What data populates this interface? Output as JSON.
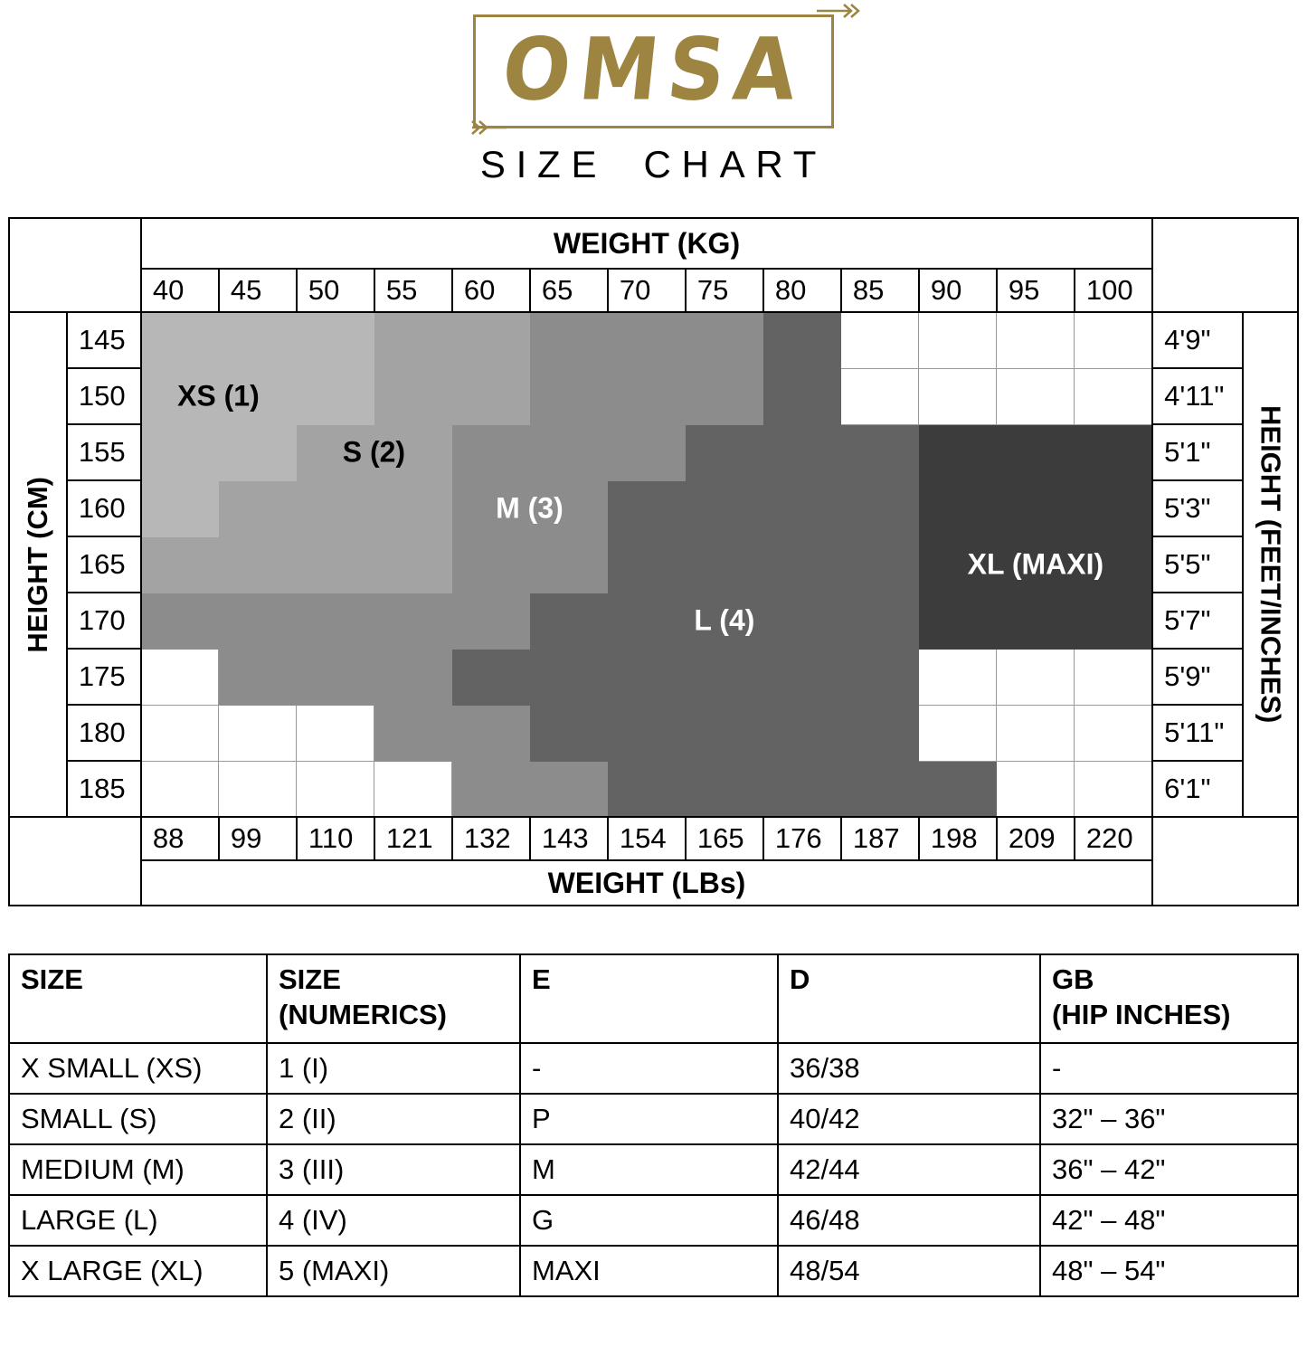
{
  "logo": {
    "brand": "OMSA",
    "title": "SIZE CHART",
    "gold": "#9d8440"
  },
  "chart_data": {
    "type": "heatmap",
    "title": "SIZE CHART",
    "top_axis": {
      "label": "WEIGHT (KG)",
      "ticks": [
        "40",
        "45",
        "50",
        "55",
        "60",
        "65",
        "70",
        "75",
        "80",
        "85",
        "90",
        "95",
        "100"
      ]
    },
    "bottom_axis": {
      "label": "WEIGHT (LBs)",
      "ticks": [
        "88",
        "99",
        "110",
        "121",
        "132",
        "143",
        "154",
        "165",
        "176",
        "187",
        "198",
        "209",
        "220"
      ]
    },
    "left_axis": {
      "label": "HEIGHT (CM)",
      "ticks": [
        "145",
        "150",
        "155",
        "160",
        "165",
        "170",
        "175",
        "180",
        "185"
      ]
    },
    "right_axis": {
      "label": "HEIGHT (FEET/INCHES)",
      "ticks": [
        "4'9\"",
        "4'11\"",
        "5'1\"",
        "5'3\"",
        "5'5\"",
        "5'7\"",
        "5'9\"",
        "5'11\"",
        "6'1\""
      ]
    },
    "sizes": [
      {
        "code": "XS",
        "label": "XS (1)",
        "color": "#b7b7b7"
      },
      {
        "code": "S",
        "label": "S (2)",
        "color": "#a3a3a3"
      },
      {
        "code": "M",
        "label": "M (3)",
        "color": "#8c8c8c"
      },
      {
        "code": "L",
        "label": "L (4)",
        "color": "#636363"
      },
      {
        "code": "XL",
        "label": "XL (MAXI)",
        "color": "#3c3c3c"
      }
    ],
    "empty_color": "#ffffff",
    "grid_line_color": "#999999",
    "cells": [
      [
        "XS",
        "XS",
        "XS",
        "S",
        "S",
        "M",
        "M",
        "M",
        "L",
        "",
        "",
        "",
        ""
      ],
      [
        "XS",
        "XS",
        "XS",
        "S",
        "S",
        "M",
        "M",
        "M",
        "L",
        "",
        "",
        "",
        ""
      ],
      [
        "XS",
        "XS",
        "S",
        "S",
        "M",
        "M",
        "M",
        "L",
        "L",
        "L",
        "XL",
        "XL",
        "XL"
      ],
      [
        "XS",
        "S",
        "S",
        "S",
        "M",
        "M",
        "L",
        "L",
        "L",
        "L",
        "XL",
        "XL",
        "XL"
      ],
      [
        "S",
        "S",
        "S",
        "S",
        "M",
        "M",
        "L",
        "L",
        "L",
        "L",
        "XL",
        "XL",
        "XL"
      ],
      [
        "M",
        "M",
        "M",
        "M",
        "M",
        "L",
        "L",
        "L",
        "L",
        "L",
        "XL",
        "XL",
        "XL"
      ],
      [
        "",
        "M",
        "M",
        "M",
        "L",
        "L",
        "L",
        "L",
        "L",
        "L",
        "",
        "",
        ""
      ],
      [
        "",
        "",
        "",
        "M",
        "M",
        "L",
        "L",
        "L",
        "L",
        "L",
        "",
        "",
        ""
      ],
      [
        "",
        "",
        "",
        "",
        "M",
        "M",
        "L",
        "L",
        "L",
        "L",
        "L",
        "",
        ""
      ]
    ],
    "overlays": [
      {
        "text": "XS (1)",
        "row": 1,
        "col": 0,
        "edge": true,
        "light": false
      },
      {
        "text": "S (2)",
        "row": 2,
        "col": 2,
        "edge": true,
        "light": false
      },
      {
        "text": "M (3)",
        "row": 3,
        "col": 4,
        "edge": true,
        "light": true
      },
      {
        "text": "L (4)",
        "row": 5,
        "col": 7,
        "edge": false,
        "light": true
      },
      {
        "text": "XL (MAXI)",
        "row": 4,
        "col": 11,
        "edge": false,
        "light": true
      }
    ]
  },
  "size_table": {
    "headers": [
      [
        "SIZE"
      ],
      [
        "SIZE",
        "(NUMERICS)"
      ],
      [
        "E"
      ],
      [
        "D"
      ],
      [
        "GB",
        "(HIP INCHES)"
      ]
    ],
    "rows": [
      [
        "X SMALL (XS)",
        "1 (I)",
        "-",
        "36/38",
        "-"
      ],
      [
        "SMALL (S)",
        "2 (II)",
        "P",
        "40/42",
        "32\" – 36\""
      ],
      [
        "MEDIUM (M)",
        "3 (III)",
        "M",
        "42/44",
        "36\" – 42\""
      ],
      [
        "LARGE (L)",
        "4 (IV)",
        "G",
        "46/48",
        "42\" – 48\""
      ],
      [
        "X LARGE (XL)",
        "5 (MAXI)",
        "MAXI",
        "48/54",
        "48\" – 54\""
      ]
    ]
  }
}
